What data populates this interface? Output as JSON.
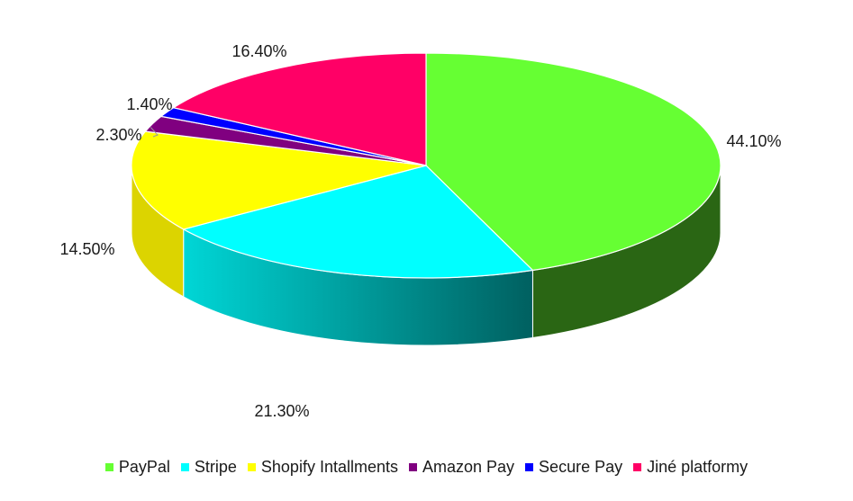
{
  "chart_data": {
    "type": "pie",
    "style": "3d",
    "categories": [
      "PayPal",
      "Stripe",
      "Shopify Intallments",
      "Amazon Pay",
      "Secure Pay",
      "Jiné platformy"
    ],
    "values": [
      44.1,
      21.3,
      14.5,
      2.3,
      1.4,
      16.4
    ],
    "data_labels": [
      "44.10%",
      "21.30%",
      "14.50%",
      "2.30%",
      "1.40%",
      "16.40%"
    ],
    "colors": [
      "#66ff33",
      "#00ffff",
      "#ffff00",
      "#800080",
      "#0000ff",
      "#ff0066"
    ],
    "side_colors": [
      "#2a6614",
      "#00a0a6",
      "#dcd400",
      "#4a004a",
      "#000090",
      "#a00040"
    ],
    "legend_position": "bottom",
    "title": ""
  }
}
